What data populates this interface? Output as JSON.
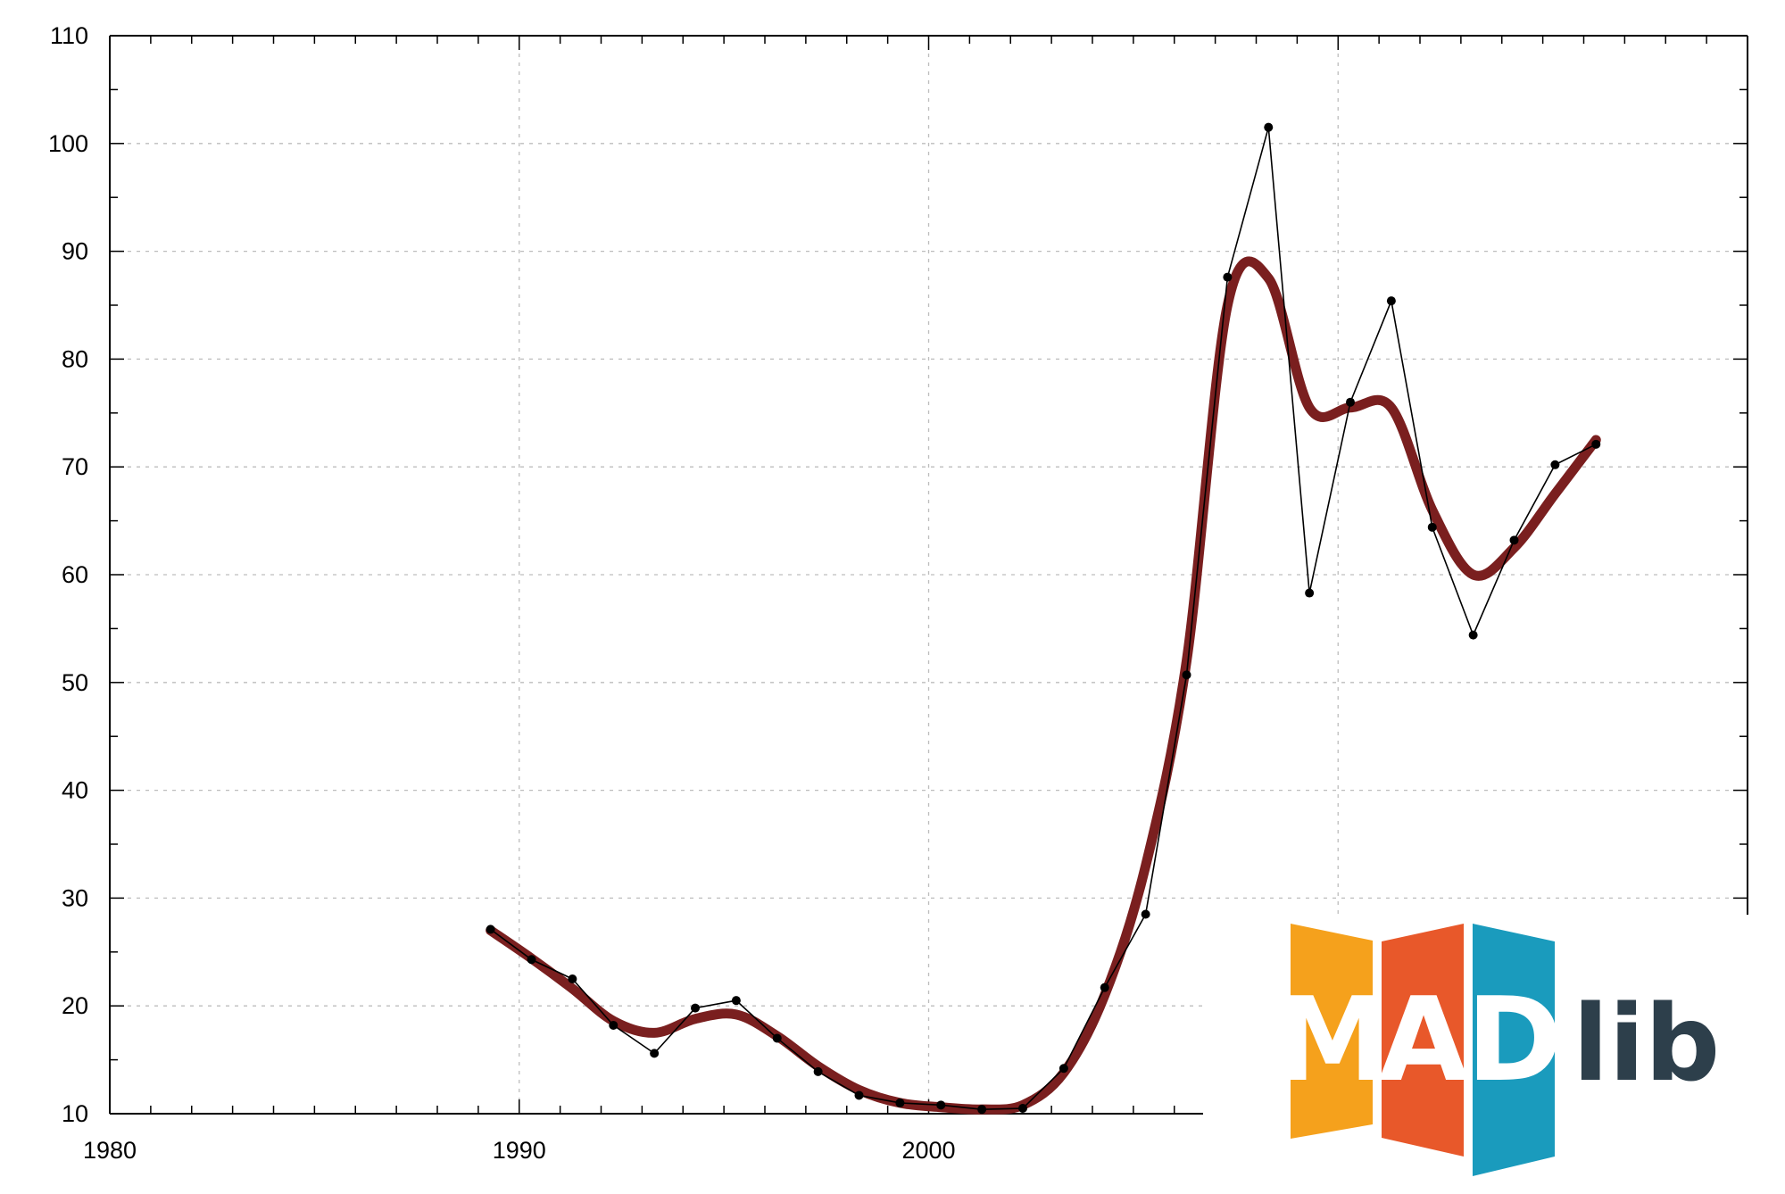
{
  "chart_data": {
    "type": "line",
    "title": "",
    "xlabel": "",
    "ylabel": "",
    "xlim": [
      1980,
      2020
    ],
    "ylim": [
      10,
      110
    ],
    "x_ticks": [
      1980,
      1990,
      2000
    ],
    "y_ticks": [
      10,
      20,
      30,
      40,
      50,
      60,
      70,
      80,
      90,
      100,
      110
    ],
    "grid": true,
    "legend": "none",
    "series": [
      {
        "role": "observed",
        "color": "#000000",
        "markers": true,
        "x": [
          1989.3,
          1990.3,
          1991.3,
          1992.3,
          1993.3,
          1994.3,
          1995.3,
          1996.3,
          1997.3,
          1998.3,
          1999.3,
          2000.3,
          2001.3,
          2002.3,
          2003.3,
          2004.3,
          2005.3,
          2006.3,
          2007.3,
          2008.3,
          2009.3,
          2010.3,
          2011.3,
          2012.3,
          2013.3,
          2014.3,
          2015.3,
          2016.3
        ],
        "y": [
          27.1,
          24.3,
          22.5,
          18.2,
          15.6,
          19.8,
          20.5,
          17.0,
          13.9,
          11.7,
          11.0,
          10.8,
          10.4,
          10.5,
          14.2,
          21.7,
          28.5,
          50.7,
          87.6,
          101.5,
          58.3,
          76.0,
          85.4,
          64.4,
          54.4,
          63.2,
          70.2,
          72.1
        ]
      },
      {
        "role": "smoothed",
        "color": "#7a1f1f",
        "markers": false,
        "x": [
          1989.3,
          1990.3,
          1991.3,
          1992.3,
          1993.3,
          1994.3,
          1995.3,
          1996.3,
          1997.3,
          1998.3,
          1999.3,
          2000.3,
          2001.3,
          2002.3,
          2003.3,
          2004.3,
          2005.3,
          2006.3,
          2007.3,
          2008.3,
          2009.3,
          2010.3,
          2011.3,
          2012.3,
          2013.3,
          2014.3,
          2015.3,
          2016.3
        ],
        "y": [
          27.0,
          24.4,
          21.6,
          18.6,
          17.5,
          18.8,
          19.2,
          17.2,
          14.4,
          12.2,
          11.0,
          10.6,
          10.4,
          10.8,
          13.8,
          21.0,
          33.0,
          52.0,
          85.0,
          87.5,
          75.5,
          75.5,
          75.5,
          66.0,
          60.0,
          62.5,
          67.5,
          72.5
        ]
      }
    ]
  },
  "logo": {
    "letters": [
      "M",
      "A",
      "D"
    ],
    "suffix": "lib",
    "colors": [
      "#f5a11c",
      "#e8582a",
      "#1a9bbd"
    ],
    "suffix_color": "#2d3f4b"
  }
}
